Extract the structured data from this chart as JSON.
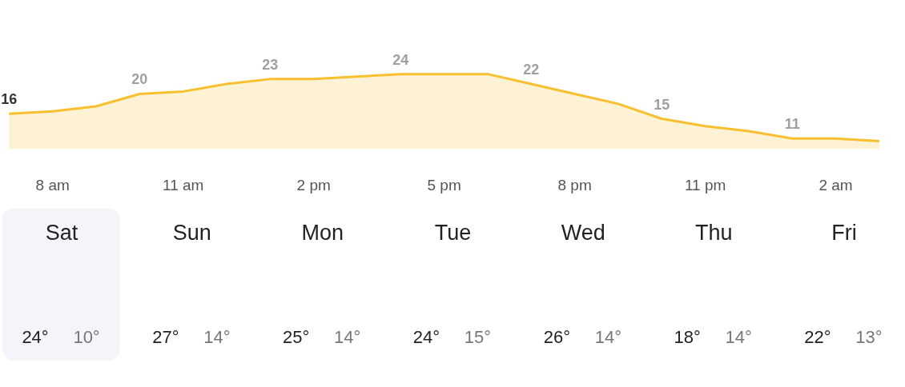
{
  "chart_data": [
    {
      "type": "area",
      "categories": [
        null,
        "8 am",
        null,
        null,
        "11 am",
        null,
        null,
        "2 pm",
        null,
        null,
        "5 pm",
        null,
        null,
        "8 pm",
        null,
        null,
        "11 pm",
        null,
        null,
        "2 am",
        null
      ],
      "series": [
        {
          "color": "#f8bf2e",
          "values": [
            16,
            16.5,
            17.5,
            20,
            20.5,
            22,
            23,
            23,
            23.5,
            24,
            24,
            24,
            22,
            20,
            18,
            15,
            13.5,
            12.5,
            11,
            11,
            10.5
          ],
          "value_labels": [
            "16",
            null,
            null,
            "20",
            null,
            null,
            "23",
            null,
            null,
            "24",
            null,
            null,
            "22",
            null,
            null,
            "15",
            null,
            null,
            "11",
            null,
            null
          ]
        }
      ],
      "tick_labels": "x",
      "grid": false
    },
    {
      "type": "other",
      "categories": [
        "Sat",
        "Sun",
        "Mon",
        "Tue",
        "Wed",
        "Thu",
        "Fri"
      ],
      "annotations": [
        "24°",
        "10°",
        "27°",
        "14°",
        "25°",
        "14°",
        "24°",
        "15°",
        "26°",
        "14°",
        "18°",
        "14°",
        "22°",
        "13°"
      ]
    }
  ]
}
